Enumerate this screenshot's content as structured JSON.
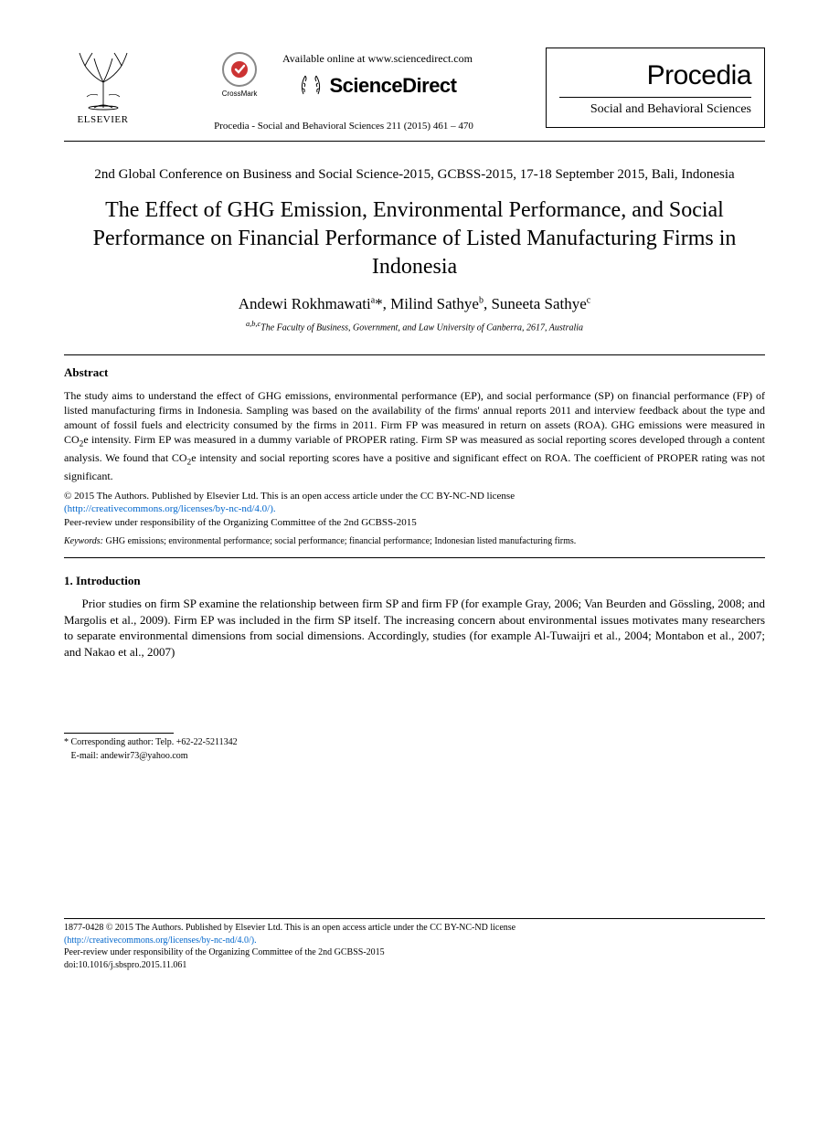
{
  "header": {
    "elsevier_label": "ELSEVIER",
    "crossmark_label": "CrossMark",
    "available_text": "Available online at www.sciencedirect.com",
    "sciencedirect_word": "ScienceDirect",
    "citation": "Procedia - Social and Behavioral Sciences 211 (2015) 461 – 470",
    "procedia_word": "Procedia",
    "procedia_sub": "Social and Behavioral Sciences"
  },
  "conference": "2nd Global Conference on Business and Social Science-2015, GCBSS-2015, 17-18 September 2015, Bali, Indonesia",
  "title": "The Effect of GHG Emission, Environmental Performance, and Social Performance on Financial Performance of Listed Manufacturing Firms in Indonesia",
  "authors_html": "Andewi Rokhmawati<sup>a</sup>*, Milind Sathye<sup>b</sup>, Suneeta Sathye<sup>c</sup>",
  "affiliation_html": "<sup>a,b,c</sup>The Faculty of Business, Government, and Law University of Canberra, 2617, Australia",
  "abstract_heading": "Abstract",
  "abstract_body": "The study aims to understand the effect of GHG emissions, environmental performance (EP), and social performance (SP) on financial performance (FP) of listed manufacturing firms in Indonesia. Sampling was based on the availability of the firms' annual reports 2011 and interview feedback about the type and amount of fossil fuels and electricity consumed by the firms in 2011. Firm FP was measured in return on assets (ROA). GHG emissions were measured in CO<sub>2</sub>e intensity. Firm EP was measured in a dummy variable of PROPER rating. Firm SP was measured as social reporting scores developed through a content analysis. We found that CO<sub>2</sub>e intensity and social reporting scores have a positive and significant effect on ROA. The coefficient of PROPER rating was not significant.",
  "copyright": {
    "line1": "© 2015 The Authors. Published by Elsevier Ltd. This is an open access article under the CC BY-NC-ND license",
    "cc_url": "(http://creativecommons.org/licenses/by-nc-nd/4.0/).",
    "peer_review": "Peer-review under responsibility of the Organizing Committee of the 2nd GCBSS-2015"
  },
  "keywords": {
    "label": "Keywords:",
    "text": " GHG emissions; environmental performance; social performance; financial performance; Indonesian listed manufacturing firms."
  },
  "intro_heading": "1. Introduction",
  "intro_body": "Prior studies on firm SP examine the relationship between firm SP and firm FP (for example Gray, 2006; Van Beurden and Gössling, 2008; and Margolis et al., 2009). Firm EP was included in the firm SP itself. The increasing concern about environmental issues motivates many researchers to separate environmental dimensions from social dimensions. Accordingly, studies (for example Al-Tuwaijri et al., 2004; Montabon et al., 2007; and Nakao et al., 2007)",
  "footnote": {
    "corr": "* Corresponding author: Telp. +62-22-5211342",
    "email": "   E-mail: andewir73@yahoo.com"
  },
  "footer": {
    "issn_line": "1877-0428 © 2015 The Authors. Published by Elsevier Ltd. This is an open access article under the CC BY-NC-ND license",
    "cc_url": "(http://creativecommons.org/licenses/by-nc-nd/4.0/).",
    "peer_review": "Peer-review under responsibility of the Organizing Committee of the 2nd GCBSS-2015",
    "doi": "doi:10.1016/j.sbspro.2015.11.061"
  },
  "colors": {
    "link": "#0066cc",
    "text": "#000000",
    "bg": "#ffffff"
  }
}
